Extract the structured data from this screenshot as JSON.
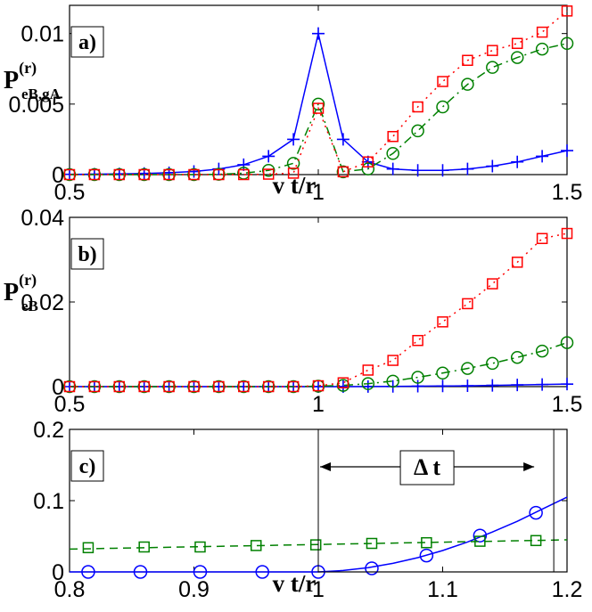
{
  "chart_data": [
    {
      "type": "line",
      "panel_label": "a)",
      "ylabel": {
        "main": "P",
        "sup": "(r)",
        "sub": "eB,gA"
      },
      "xlabel": "v t/r",
      "xlim": [
        0.5,
        1.5
      ],
      "ylim": [
        0,
        0.012
      ],
      "x_ticks": [
        "0.5",
        "1",
        "1.5"
      ],
      "y_ticks": [
        "0",
        "0.005",
        "0.01"
      ],
      "y_tick_values": [
        0,
        0.005,
        0.01
      ],
      "series": [
        {
          "color": "#0000ff",
          "marker": "plus",
          "line": "solid",
          "x": [
            0.5,
            0.55,
            0.6,
            0.65,
            0.7,
            0.75,
            0.8,
            0.85,
            0.9,
            0.95,
            1.0,
            1.05,
            1.1,
            1.15,
            1.2,
            1.25,
            1.3,
            1.35,
            1.4,
            1.45,
            1.5
          ],
          "y": [
            2e-05,
            3e-05,
            5e-05,
            8e-05,
            0.00013,
            0.00022,
            0.0004,
            0.0007,
            0.0013,
            0.0025,
            0.01,
            0.0025,
            0.0009,
            0.0004,
            0.0003,
            0.0003,
            0.0004,
            0.0006,
            0.0009,
            0.0013,
            0.0017
          ]
        },
        {
          "color": "#008000",
          "marker": "circle",
          "line": "dash-dot",
          "x": [
            0.5,
            0.55,
            0.6,
            0.65,
            0.7,
            0.75,
            0.8,
            0.85,
            0.9,
            0.95,
            1.0,
            1.05,
            1.1,
            1.15,
            1.2,
            1.25,
            1.3,
            1.35,
            1.4,
            1.45,
            1.5
          ],
          "y": [
            0,
            0,
            0,
            0,
            0,
            0,
            2e-05,
            0.0001,
            0.0003,
            0.0008,
            0.005,
            0.0002,
            0.0004,
            0.0015,
            0.0031,
            0.0048,
            0.0064,
            0.0076,
            0.0083,
            0.0089,
            0.0093
          ]
        },
        {
          "color": "#ff0000",
          "marker": "square",
          "line": "dotted",
          "x": [
            0.5,
            0.55,
            0.6,
            0.65,
            0.7,
            0.75,
            0.8,
            0.85,
            0.9,
            0.95,
            1.0,
            1.05,
            1.1,
            1.15,
            1.2,
            1.25,
            1.3,
            1.35,
            1.4,
            1.45,
            1.5
          ],
          "y": [
            0,
            0,
            0,
            0,
            0,
            0,
            0,
            0,
            3e-05,
            0.0001,
            0.0047,
            0.0002,
            0.0009,
            0.0027,
            0.0048,
            0.0066,
            0.0081,
            0.0088,
            0.0093,
            0.0101,
            0.0116
          ]
        }
      ]
    },
    {
      "type": "line",
      "panel_label": "b)",
      "ylabel": {
        "main": "P",
        "sup": "(r)",
        "sub": "eB"
      },
      "xlabel": "",
      "xlim": [
        0.5,
        1.5
      ],
      "ylim": [
        0,
        0.04
      ],
      "x_ticks": [
        "0.5",
        "1",
        "1.5"
      ],
      "y_ticks": [
        "0",
        "0.02",
        "0.04"
      ],
      "y_tick_values": [
        0,
        0.02,
        0.04
      ],
      "series": [
        {
          "color": "#0000ff",
          "marker": "plus",
          "line": "solid",
          "x": [
            0.5,
            0.55,
            0.6,
            0.65,
            0.7,
            0.75,
            0.8,
            0.85,
            0.9,
            0.95,
            1.0,
            1.05,
            1.1,
            1.15,
            1.2,
            1.25,
            1.3,
            1.35,
            1.4,
            1.45,
            1.5
          ],
          "y": [
            0,
            0,
            0,
            0,
            0,
            0,
            0,
            0,
            0,
            0,
            0,
            0,
            2e-05,
            5e-05,
            0.0001,
            0.00015,
            0.0002,
            0.0003,
            0.0004,
            0.0005,
            0.0006
          ]
        },
        {
          "color": "#008000",
          "marker": "circle",
          "line": "dash-dot",
          "x": [
            0.5,
            0.55,
            0.6,
            0.65,
            0.7,
            0.75,
            0.8,
            0.85,
            0.9,
            0.95,
            1.0,
            1.05,
            1.1,
            1.15,
            1.2,
            1.25,
            1.3,
            1.35,
            1.4,
            1.45,
            1.5
          ],
          "y": [
            0,
            0,
            0,
            0,
            0,
            0,
            0,
            0,
            0,
            0,
            0.0001,
            0.0003,
            0.0007,
            0.0013,
            0.0022,
            0.0032,
            0.0043,
            0.0055,
            0.0069,
            0.0084,
            0.0104
          ]
        },
        {
          "color": "#ff0000",
          "marker": "square",
          "line": "dotted",
          "x": [
            0.5,
            0.55,
            0.6,
            0.65,
            0.7,
            0.75,
            0.8,
            0.85,
            0.9,
            0.95,
            1.0,
            1.05,
            1.1,
            1.15,
            1.2,
            1.25,
            1.3,
            1.35,
            1.4,
            1.45,
            1.5
          ],
          "y": [
            0,
            0,
            0,
            0,
            0,
            0,
            0,
            0,
            0,
            0,
            0.0002,
            0.0009,
            0.0039,
            0.0062,
            0.0109,
            0.0153,
            0.0196,
            0.0243,
            0.0294,
            0.035,
            0.0362
          ]
        }
      ]
    },
    {
      "type": "line",
      "panel_label": "c)",
      "ylabel": "",
      "xlabel": "v t/r",
      "xlim": [
        0.8,
        1.2
      ],
      "ylim": [
        0,
        0.2
      ],
      "x_ticks": [
        "0.8",
        "0.9",
        "1",
        "1.1",
        "1.2"
      ],
      "y_ticks": [
        "0",
        "0.1",
        "0.2"
      ],
      "y_tick_values": [
        0,
        0.1,
        0.2
      ],
      "annotation": {
        "text": "Δ t",
        "x_start": 1.0,
        "x_end": 1.175
      },
      "series": [
        {
          "color": "#0000ff",
          "marker": "circle",
          "line": "solid",
          "x": [
            0.8,
            0.82,
            0.84,
            0.86,
            0.88,
            0.9,
            0.92,
            0.94,
            0.96,
            0.98,
            1.0,
            1.02,
            1.04,
            1.06,
            1.08,
            1.1,
            1.12,
            1.14,
            1.16,
            1.18,
            1.2
          ],
          "y": [
            0,
            0,
            0,
            0,
            0,
            0,
            0,
            0,
            0,
            0,
            0,
            0.002,
            0.006,
            0.012,
            0.02,
            0.03,
            0.042,
            0.056,
            0.071,
            0.088,
            0.105
          ],
          "markers_x": [
            0.815,
            0.857,
            0.905,
            0.955,
            1.0,
            1.043,
            1.087,
            1.13,
            1.175
          ],
          "markers_y": [
            0,
            0,
            0,
            0,
            0,
            0.005,
            0.023,
            0.051,
            0.083
          ]
        },
        {
          "color": "#008000",
          "marker": "square",
          "line": "dashed",
          "x": [
            0.8,
            1.2
          ],
          "y": [
            0.032,
            0.045
          ],
          "markers_x": [
            0.815,
            0.86,
            0.905,
            0.95,
            0.998,
            1.043,
            1.087,
            1.13,
            1.175
          ],
          "markers_y": [
            0.034,
            0.035,
            0.035,
            0.037,
            0.038,
            0.04,
            0.041,
            0.043,
            0.044
          ]
        }
      ]
    }
  ]
}
